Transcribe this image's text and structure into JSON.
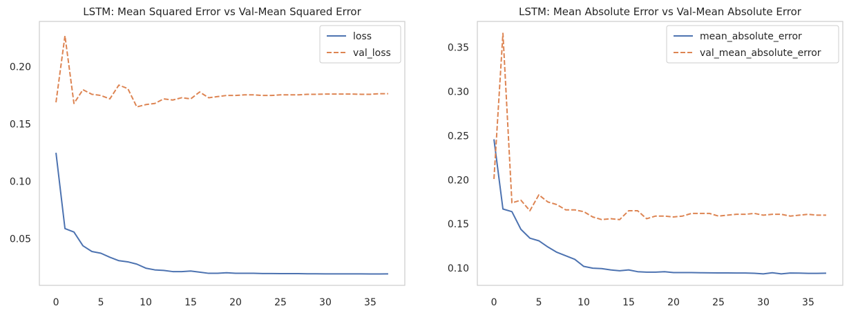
{
  "chart_data": [
    {
      "type": "line",
      "title": "LSTM: Mean Squared Error vs Val-Mean Squared Error",
      "xlabel": "",
      "ylabel": "",
      "xlim": [
        -1.85,
        38.85
      ],
      "ylim": [
        0.0095,
        0.2395
      ],
      "xticks": [
        0,
        5,
        10,
        15,
        20,
        25,
        30,
        35
      ],
      "xtick_labels": [
        "0",
        "5",
        "10",
        "15",
        "20",
        "25",
        "30",
        "35"
      ],
      "yticks": [
        0.05,
        0.1,
        0.15,
        0.2
      ],
      "ytick_labels": [
        "0.05",
        "0.10",
        "0.15",
        "0.20"
      ],
      "grid": false,
      "legend_position": "top-right",
      "x": [
        0,
        1,
        2,
        3,
        4,
        5,
        6,
        7,
        8,
        9,
        10,
        11,
        12,
        13,
        14,
        15,
        16,
        17,
        18,
        19,
        20,
        21,
        22,
        23,
        24,
        25,
        26,
        27,
        28,
        29,
        30,
        31,
        32,
        33,
        34,
        35,
        36,
        37
      ],
      "series": [
        {
          "name": "loss",
          "color": "#4c72b0",
          "style": "solid",
          "values": [
            0.125,
            0.059,
            0.056,
            0.044,
            0.039,
            0.0375,
            0.034,
            0.031,
            0.03,
            0.028,
            0.0245,
            0.023,
            0.0225,
            0.0215,
            0.0215,
            0.022,
            0.021,
            0.02,
            0.02,
            0.0205,
            0.02,
            0.02,
            0.02,
            0.0198,
            0.0198,
            0.0197,
            0.0197,
            0.0197,
            0.0196,
            0.0196,
            0.0195,
            0.0195,
            0.0195,
            0.0195,
            0.0195,
            0.0194,
            0.0194,
            0.0195
          ]
        },
        {
          "name": "val_loss",
          "color": "#dd8452",
          "style": "dashed",
          "values": [
            0.169,
            0.227,
            0.168,
            0.18,
            0.176,
            0.175,
            0.172,
            0.184,
            0.181,
            0.165,
            0.167,
            0.168,
            0.172,
            0.171,
            0.173,
            0.172,
            0.178,
            0.173,
            0.174,
            0.175,
            0.175,
            0.1755,
            0.1755,
            0.175,
            0.175,
            0.1755,
            0.1755,
            0.1755,
            0.176,
            0.176,
            0.1762,
            0.1762,
            0.1762,
            0.1762,
            0.176,
            0.176,
            0.1765,
            0.1765
          ]
        }
      ]
    },
    {
      "type": "line",
      "title": "LSTM: Mean Absolute Error vs Val-Mean Absolute Error",
      "xlabel": "",
      "ylabel": "",
      "xlim": [
        -1.85,
        38.85
      ],
      "ylim": [
        0.0805,
        0.3795
      ],
      "xticks": [
        0,
        5,
        10,
        15,
        20,
        25,
        30,
        35
      ],
      "xtick_labels": [
        "0",
        "5",
        "10",
        "15",
        "20",
        "25",
        "30",
        "35"
      ],
      "yticks": [
        0.1,
        0.15,
        0.2,
        0.25,
        0.3,
        0.35
      ],
      "ytick_labels": [
        "0.10",
        "0.15",
        "0.20",
        "0.25",
        "0.30",
        "0.35"
      ],
      "grid": false,
      "legend_position": "top-right",
      "x": [
        0,
        1,
        2,
        3,
        4,
        5,
        6,
        7,
        8,
        9,
        10,
        11,
        12,
        13,
        14,
        15,
        16,
        17,
        18,
        19,
        20,
        21,
        22,
        23,
        24,
        25,
        26,
        27,
        28,
        29,
        30,
        31,
        32,
        33,
        34,
        35,
        36,
        37
      ],
      "series": [
        {
          "name": "mean_absolute_error",
          "color": "#4c72b0",
          "style": "solid",
          "values": [
            0.246,
            0.167,
            0.164,
            0.144,
            0.134,
            0.131,
            0.124,
            0.118,
            0.114,
            0.11,
            0.102,
            0.1,
            0.0995,
            0.098,
            0.097,
            0.098,
            0.096,
            0.0955,
            0.0955,
            0.096,
            0.095,
            0.095,
            0.095,
            0.0948,
            0.0947,
            0.0946,
            0.0946,
            0.0945,
            0.0945,
            0.0942,
            0.0935,
            0.0948,
            0.0935,
            0.0945,
            0.0944,
            0.0941,
            0.0941,
            0.0943
          ]
        },
        {
          "name": "val_mean_absolute_error",
          "color": "#dd8452",
          "style": "dashed",
          "values": [
            0.201,
            0.366,
            0.174,
            0.177,
            0.165,
            0.183,
            0.175,
            0.172,
            0.166,
            0.166,
            0.164,
            0.158,
            0.155,
            0.156,
            0.155,
            0.165,
            0.165,
            0.156,
            0.159,
            0.159,
            0.158,
            0.159,
            0.162,
            0.162,
            0.162,
            0.159,
            0.16,
            0.161,
            0.161,
            0.162,
            0.16,
            0.161,
            0.161,
            0.159,
            0.16,
            0.161,
            0.16,
            0.16
          ]
        }
      ]
    }
  ]
}
